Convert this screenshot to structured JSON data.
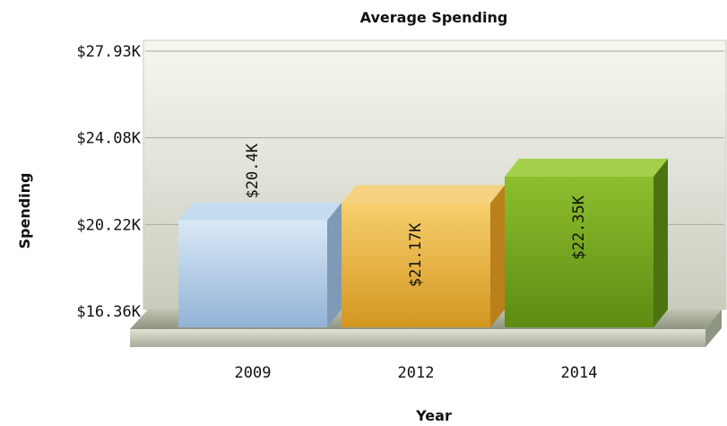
{
  "chart_data": {
    "type": "bar",
    "title": "Average Spending",
    "xlabel": "Year",
    "ylabel": "Spending",
    "categories": [
      "2009",
      "2012",
      "2014"
    ],
    "values": [
      20400,
      21170,
      22350
    ],
    "data_labels": [
      "$20.4K",
      "$21.17K",
      "$22.35K"
    ],
    "yticks": [
      "$16.36K",
      "$20.22K",
      "$24.08K",
      "$27.93K"
    ],
    "ylim": [
      16360,
      27930
    ],
    "grid": true,
    "legend": "none",
    "colors": [
      "#a9c6e4",
      "#e8b13c",
      "#6f9e1c"
    ]
  }
}
